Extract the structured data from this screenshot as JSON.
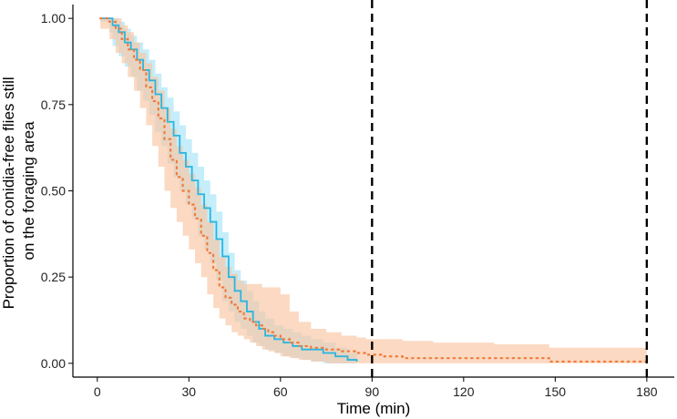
{
  "chart_data": {
    "type": "line",
    "step": true,
    "title": "",
    "xlabel": "Time (min)",
    "ylabel_lines": [
      "Proportion of conidia-free flies still",
      "on the foraging area"
    ],
    "xlim": [
      -8,
      189
    ],
    "ylim": [
      -0.04,
      1.04
    ],
    "x_ticks": [
      0,
      30,
      60,
      90,
      120,
      150,
      180
    ],
    "x_tick_labels": [
      "0",
      "30",
      "60",
      "90",
      "120",
      "150",
      "180"
    ],
    "y_ticks": [
      0,
      0.25,
      0.5,
      0.75,
      1.0
    ],
    "y_tick_labels": [
      "0.00",
      "0.25",
      "0.50",
      "0.75",
      "1.00"
    ],
    "grid": false,
    "legend": "none",
    "vlines": [
      90,
      180
    ],
    "series": [
      {
        "color": "#29b6e0",
        "band_color": "#a6e4f7",
        "line_style": "solid",
        "points": [
          [
            1,
            1.0
          ],
          [
            4,
            1.0
          ],
          [
            5,
            0.98
          ],
          [
            7,
            0.96
          ],
          [
            9,
            0.93
          ],
          [
            11,
            0.91
          ],
          [
            13,
            0.88
          ],
          [
            15,
            0.85
          ],
          [
            17,
            0.82
          ],
          [
            19,
            0.78
          ],
          [
            21,
            0.74
          ],
          [
            23,
            0.7
          ],
          [
            25,
            0.66
          ],
          [
            27,
            0.61
          ],
          [
            29,
            0.57
          ],
          [
            31,
            0.53
          ],
          [
            33,
            0.49
          ],
          [
            35,
            0.45
          ],
          [
            37,
            0.41
          ],
          [
            39,
            0.36
          ],
          [
            41,
            0.31
          ],
          [
            43,
            0.25
          ],
          [
            45,
            0.21
          ],
          [
            47,
            0.18
          ],
          [
            49,
            0.15
          ],
          [
            51,
            0.12
          ],
          [
            53,
            0.1
          ],
          [
            55,
            0.08
          ],
          [
            58,
            0.07
          ],
          [
            61,
            0.06
          ],
          [
            64,
            0.05
          ],
          [
            67,
            0.04
          ],
          [
            70,
            0.04
          ],
          [
            74,
            0.03
          ],
          [
            78,
            0.02
          ],
          [
            82,
            0.01
          ],
          [
            85,
            0.005
          ]
        ],
        "lower": [
          [
            1,
            1.0
          ],
          [
            4,
            0.99
          ],
          [
            5,
            0.96
          ],
          [
            7,
            0.92
          ],
          [
            9,
            0.89
          ],
          [
            11,
            0.86
          ],
          [
            13,
            0.83
          ],
          [
            15,
            0.79
          ],
          [
            17,
            0.76
          ],
          [
            19,
            0.72
          ],
          [
            21,
            0.67
          ],
          [
            23,
            0.63
          ],
          [
            25,
            0.58
          ],
          [
            27,
            0.54
          ],
          [
            29,
            0.5
          ],
          [
            31,
            0.46
          ],
          [
            33,
            0.42
          ],
          [
            35,
            0.37
          ],
          [
            37,
            0.33
          ],
          [
            39,
            0.29
          ],
          [
            41,
            0.24
          ],
          [
            43,
            0.18
          ],
          [
            45,
            0.15
          ],
          [
            47,
            0.12
          ],
          [
            49,
            0.1
          ],
          [
            51,
            0.08
          ],
          [
            53,
            0.06
          ],
          [
            55,
            0.05
          ],
          [
            58,
            0.04
          ],
          [
            61,
            0.03
          ],
          [
            64,
            0.02
          ],
          [
            67,
            0.015
          ],
          [
            70,
            0.01
          ],
          [
            74,
            0.005
          ],
          [
            78,
            0.0
          ],
          [
            82,
            0.0
          ],
          [
            85,
            0.0
          ]
        ],
        "upper": [
          [
            1,
            1.0
          ],
          [
            4,
            1.0
          ],
          [
            5,
            1.0
          ],
          [
            7,
            0.99
          ],
          [
            9,
            0.97
          ],
          [
            11,
            0.95
          ],
          [
            13,
            0.93
          ],
          [
            15,
            0.91
          ],
          [
            17,
            0.88
          ],
          [
            19,
            0.84
          ],
          [
            21,
            0.8
          ],
          [
            23,
            0.77
          ],
          [
            25,
            0.73
          ],
          [
            27,
            0.69
          ],
          [
            29,
            0.65
          ],
          [
            31,
            0.61
          ],
          [
            33,
            0.57
          ],
          [
            35,
            0.53
          ],
          [
            37,
            0.49
          ],
          [
            39,
            0.44
          ],
          [
            41,
            0.38
          ],
          [
            43,
            0.32
          ],
          [
            45,
            0.27
          ],
          [
            47,
            0.24
          ],
          [
            49,
            0.21
          ],
          [
            51,
            0.18
          ],
          [
            53,
            0.15
          ],
          [
            55,
            0.13
          ],
          [
            58,
            0.11
          ],
          [
            61,
            0.1
          ],
          [
            64,
            0.09
          ],
          [
            67,
            0.08
          ],
          [
            70,
            0.07
          ],
          [
            74,
            0.06
          ],
          [
            78,
            0.045
          ],
          [
            82,
            0.03
          ],
          [
            85,
            0.02
          ]
        ]
      },
      {
        "color": "#f07b3c",
        "band_color": "#f9c4a2",
        "line_style": "dotted",
        "points": [
          [
            1,
            1.0
          ],
          [
            4,
            0.99
          ],
          [
            6,
            0.97
          ],
          [
            8,
            0.94
          ],
          [
            10,
            0.91
          ],
          [
            12,
            0.88
          ],
          [
            14,
            0.85
          ],
          [
            16,
            0.8
          ],
          [
            18,
            0.76
          ],
          [
            20,
            0.71
          ],
          [
            22,
            0.65
          ],
          [
            24,
            0.59
          ],
          [
            26,
            0.54
          ],
          [
            28,
            0.5
          ],
          [
            30,
            0.46
          ],
          [
            32,
            0.42
          ],
          [
            34,
            0.37
          ],
          [
            36,
            0.32
          ],
          [
            38,
            0.27
          ],
          [
            40,
            0.22
          ],
          [
            42,
            0.19
          ],
          [
            44,
            0.17
          ],
          [
            46,
            0.15
          ],
          [
            48,
            0.13
          ],
          [
            50,
            0.12
          ],
          [
            52,
            0.11
          ],
          [
            54,
            0.1
          ],
          [
            56,
            0.09
          ],
          [
            58,
            0.08
          ],
          [
            60,
            0.07
          ],
          [
            63,
            0.06
          ],
          [
            66,
            0.05
          ],
          [
            70,
            0.045
          ],
          [
            75,
            0.04
          ],
          [
            80,
            0.035
          ],
          [
            85,
            0.03
          ],
          [
            88,
            0.025
          ],
          [
            94,
            0.02
          ],
          [
            100,
            0.015
          ],
          [
            110,
            0.015
          ],
          [
            120,
            0.015
          ],
          [
            130,
            0.015
          ],
          [
            140,
            0.015
          ],
          [
            148,
            0.005
          ],
          [
            160,
            0.005
          ],
          [
            170,
            0.005
          ],
          [
            180,
            0.005
          ]
        ],
        "lower": [
          [
            1,
            1.0
          ],
          [
            4,
            0.97
          ],
          [
            6,
            0.94
          ],
          [
            8,
            0.9
          ],
          [
            10,
            0.87
          ],
          [
            12,
            0.83
          ],
          [
            14,
            0.79
          ],
          [
            16,
            0.74
          ],
          [
            18,
            0.69
          ],
          [
            20,
            0.63
          ],
          [
            22,
            0.57
          ],
          [
            24,
            0.5
          ],
          [
            26,
            0.45
          ],
          [
            28,
            0.41
          ],
          [
            30,
            0.37
          ],
          [
            32,
            0.33
          ],
          [
            34,
            0.29
          ],
          [
            36,
            0.25
          ],
          [
            38,
            0.2
          ],
          [
            40,
            0.16
          ],
          [
            42,
            0.13
          ],
          [
            44,
            0.11
          ],
          [
            46,
            0.09
          ],
          [
            48,
            0.08
          ],
          [
            50,
            0.07
          ],
          [
            52,
            0.06
          ],
          [
            54,
            0.05
          ],
          [
            56,
            0.04
          ],
          [
            58,
            0.035
          ],
          [
            60,
            0.03
          ],
          [
            63,
            0.02
          ],
          [
            66,
            0.015
          ],
          [
            70,
            0.01
          ],
          [
            75,
            0.005
          ],
          [
            80,
            0.0
          ],
          [
            85,
            0.0
          ],
          [
            88,
            0.0
          ],
          [
            94,
            0.0
          ],
          [
            100,
            0.0
          ],
          [
            110,
            0.0
          ],
          [
            120,
            0.0
          ],
          [
            130,
            0.0
          ],
          [
            140,
            0.0
          ],
          [
            148,
            0.0
          ],
          [
            160,
            0.0
          ],
          [
            170,
            0.0
          ],
          [
            180,
            0.0
          ]
        ],
        "upper": [
          [
            1,
            1.0
          ],
          [
            4,
            1.0
          ],
          [
            6,
            1.0
          ],
          [
            8,
            0.98
          ],
          [
            10,
            0.96
          ],
          [
            12,
            0.93
          ],
          [
            14,
            0.9
          ],
          [
            16,
            0.87
          ],
          [
            18,
            0.83
          ],
          [
            20,
            0.79
          ],
          [
            22,
            0.74
          ],
          [
            24,
            0.68
          ],
          [
            26,
            0.63
          ],
          [
            28,
            0.59
          ],
          [
            30,
            0.55
          ],
          [
            32,
            0.51
          ],
          [
            34,
            0.46
          ],
          [
            36,
            0.41
          ],
          [
            38,
            0.36
          ],
          [
            40,
            0.31
          ],
          [
            42,
            0.28
          ],
          [
            44,
            0.26
          ],
          [
            46,
            0.24
          ],
          [
            48,
            0.23
          ],
          [
            50,
            0.23
          ],
          [
            52,
            0.23
          ],
          [
            54,
            0.22
          ],
          [
            56,
            0.22
          ],
          [
            58,
            0.22
          ],
          [
            60,
            0.2
          ],
          [
            63,
            0.15
          ],
          [
            66,
            0.12
          ],
          [
            70,
            0.1
          ],
          [
            75,
            0.09
          ],
          [
            80,
            0.08
          ],
          [
            85,
            0.075
          ],
          [
            88,
            0.07
          ],
          [
            94,
            0.07
          ],
          [
            100,
            0.065
          ],
          [
            110,
            0.06
          ],
          [
            120,
            0.06
          ],
          [
            130,
            0.055
          ],
          [
            140,
            0.055
          ],
          [
            148,
            0.045
          ],
          [
            160,
            0.045
          ],
          [
            170,
            0.045
          ],
          [
            180,
            0.045
          ]
        ]
      }
    ]
  }
}
